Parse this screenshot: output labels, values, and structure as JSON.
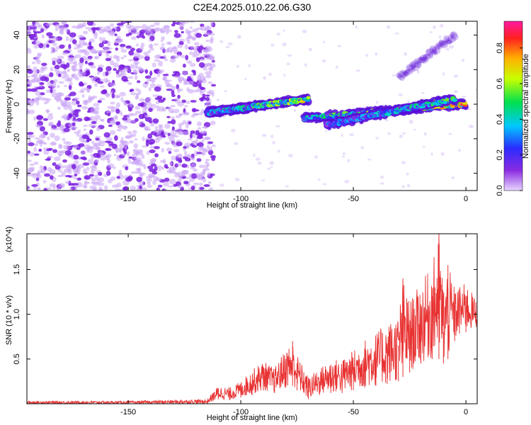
{
  "title": "C2E4.2025.010.22.06.G30",
  "colors": {
    "snr_line": "#e83232",
    "axis": "#000000",
    "background": "#ffffff"
  },
  "chart_data": [
    {
      "type": "heatmap",
      "title": "C2E4.2025.010.22.06.G30",
      "xlabel": "Height of straight line (km)",
      "ylabel": "Frequency (Hz)",
      "xlim": [
        -195,
        5
      ],
      "ylim": [
        -50,
        48
      ],
      "x_ticks": [
        -150,
        -100,
        -50,
        0
      ],
      "y_ticks": [
        -40,
        -20,
        0,
        20,
        40
      ],
      "x_tick_labels": [
        "-150",
        "-100",
        "-50",
        "0"
      ],
      "y_tick_labels": [
        "-40",
        "-20",
        "0",
        "20",
        "40"
      ],
      "colorbar": {
        "label": "Normalized spectral amplitude",
        "range": [
          0,
          0.95
        ],
        "ticks": [
          0.0,
          0.2,
          0.4,
          0.6,
          0.8
        ],
        "tick_labels": [
          "0.0",
          "0.2",
          "0.4",
          "0.6",
          "0.8"
        ],
        "colormap": "rainbow (violet to red)"
      },
      "features": [
        {
          "name": "noise",
          "x_range": [
            -195,
            -112
          ],
          "freq_range": [
            -50,
            48
          ],
          "amplitude": 0.05
        },
        {
          "name": "upper trace",
          "start": [
            -115,
            -5
          ],
          "end": [
            -70,
            3
          ],
          "amplitude_peak": 0.75
        },
        {
          "name": "middle trace",
          "start": [
            -72,
            -8
          ],
          "end": [
            0,
            0
          ],
          "amplitude_peak": 0.9
        },
        {
          "name": "lower trace",
          "start": [
            -62,
            -12
          ],
          "end": [
            -5,
            3
          ],
          "amplitude_peak": 0.6
        },
        {
          "name": "faint tail",
          "start": [
            -30,
            15
          ],
          "end": [
            -5,
            40
          ],
          "amplitude": 0.1
        }
      ],
      "grid": false
    },
    {
      "type": "line",
      "xlabel": "Height of straight line (km)",
      "ylabel": "SNR (10 * v/v)",
      "y_multiplier": "(x10^4)",
      "xlim": [
        -195,
        5
      ],
      "ylim": [
        0,
        1.9
      ],
      "x_ticks": [
        -150,
        -100,
        -50,
        0
      ],
      "y_ticks": [
        0.5,
        1.0,
        1.5
      ],
      "x_tick_labels": [
        "-150",
        "-100",
        "-50",
        "0"
      ],
      "y_tick_labels": [
        "0.5",
        "1.0",
        "1.5"
      ],
      "series": [
        {
          "x": [
            -195,
            -150,
            -115,
            -110,
            -105,
            -100,
            -95,
            -90,
            -85,
            -80,
            -77,
            -75,
            -70,
            -65,
            -60,
            -55,
            -50,
            -45,
            -40,
            -35,
            -30,
            -28,
            -25,
            -20,
            -15,
            -12,
            -10,
            -8,
            -5,
            0,
            5
          ],
          "y": [
            0.02,
            0.02,
            0.02,
            0.12,
            0.1,
            0.15,
            0.2,
            0.3,
            0.25,
            0.4,
            0.7,
            0.35,
            0.15,
            0.25,
            0.3,
            0.25,
            0.35,
            0.4,
            0.5,
            0.6,
            0.65,
            1.4,
            0.7,
            1.1,
            1.2,
            1.9,
            0.8,
            1.55,
            1.1,
            1.2,
            0.9
          ],
          "envelope_top": [
            0.03,
            0.03,
            0.05,
            0.2,
            0.18,
            0.25,
            0.38,
            0.48,
            0.4,
            0.62,
            0.7,
            0.55,
            0.3,
            0.4,
            0.5,
            0.5,
            0.6,
            0.72,
            0.8,
            0.9,
            1.0,
            1.4,
            1.15,
            1.35,
            1.55,
            1.9,
            1.35,
            1.55,
            1.3,
            1.35,
            1.15
          ],
          "envelope_bottom": [
            0.0,
            0.0,
            0.0,
            0.05,
            0.04,
            0.07,
            0.1,
            0.15,
            0.12,
            0.18,
            0.2,
            0.15,
            0.05,
            0.1,
            0.12,
            0.12,
            0.15,
            0.18,
            0.2,
            0.22,
            0.25,
            0.3,
            0.35,
            0.45,
            0.5,
            0.5,
            0.45,
            0.5,
            0.7,
            0.8,
            0.85
          ]
        }
      ],
      "grid": false
    }
  ]
}
